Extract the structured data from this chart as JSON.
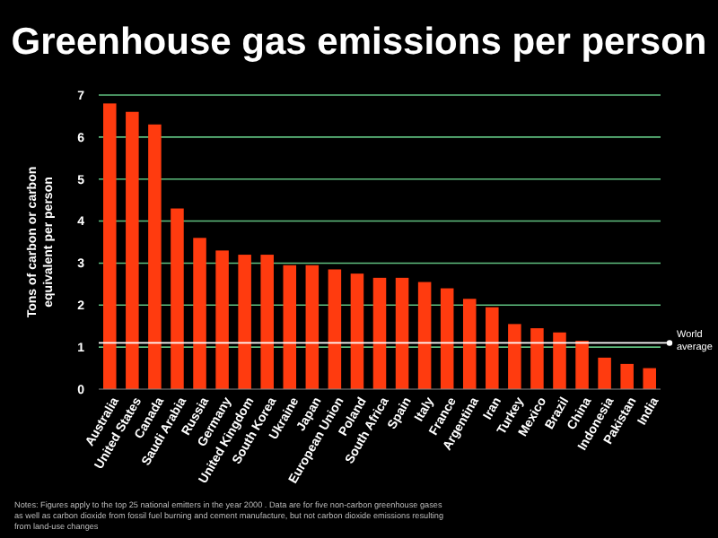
{
  "chart_data": {
    "type": "bar",
    "title": "Greenhouse gas emissions per person",
    "ylabel": "Tons of carbon or carbon equivalent per person",
    "categories": [
      "Australia",
      "United States",
      "Canada",
      "Saudi Arabia",
      "Russia",
      "Germany",
      "United Kingdom",
      "South Korea",
      "Ukraine",
      "Japan",
      "European Union",
      "Poland",
      "South Africa",
      "Spain",
      "Italy",
      "France",
      "Argentina",
      "Iran",
      "Turkey",
      "Mexico",
      "Brazil",
      "China",
      "Indonesia",
      "Pakistan",
      "India"
    ],
    "values": [
      6.8,
      6.6,
      6.3,
      4.3,
      3.6,
      3.3,
      3.2,
      3.2,
      2.95,
      2.95,
      2.85,
      2.75,
      2.65,
      2.65,
      2.55,
      2.4,
      2.15,
      1.95,
      1.55,
      1.45,
      1.35,
      1.15,
      0.75,
      0.6,
      0.5
    ],
    "color": "#ff3b0f",
    "ylim": [
      0,
      7
    ],
    "yticks": [
      0,
      1,
      2,
      3,
      4,
      5,
      6,
      7
    ],
    "grid": "y",
    "ref_lines": [
      {
        "axis": "y",
        "value": 1.1,
        "label": "World average",
        "color": "#ffffff"
      }
    ],
    "annotations": [
      "Notes: Figures apply to the top 25 national emitters in the year 2000 . Data are for five non-carbon greenhouse gases as well as carbon dioxide from fossil fuel burning and cement manufacture, but not carbon dioxide emissions resulting from land-use changes"
    ]
  }
}
